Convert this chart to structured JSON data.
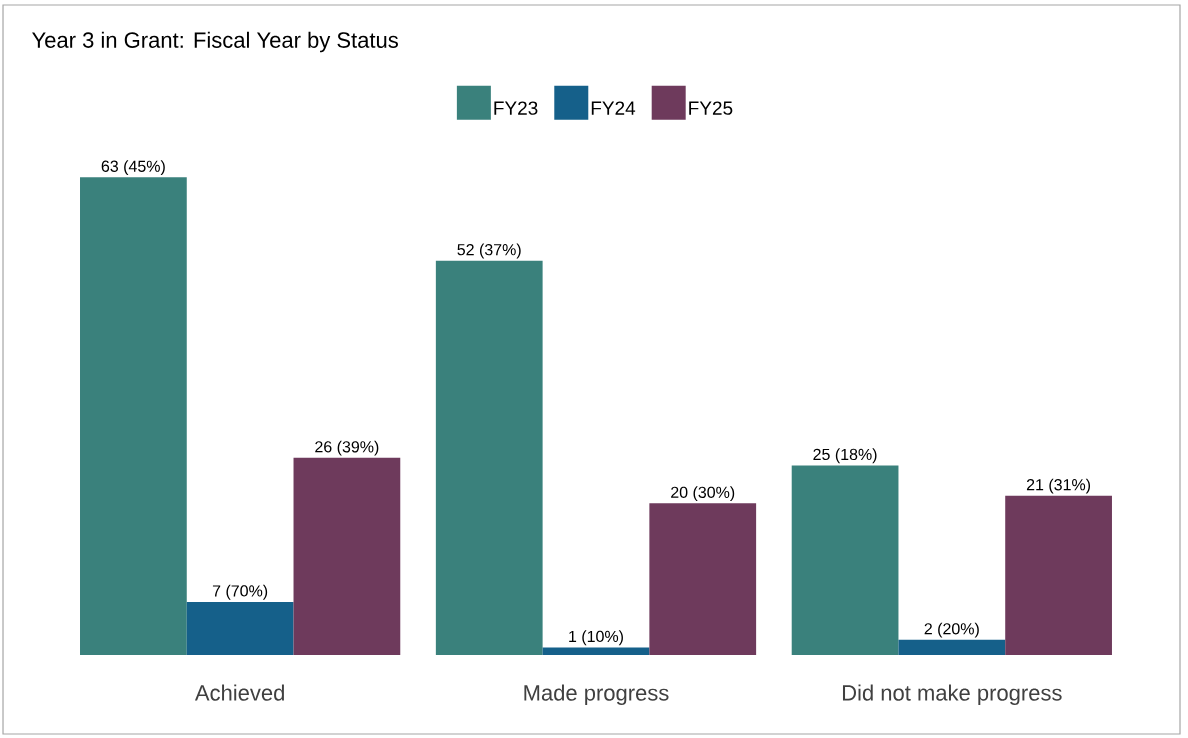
{
  "chart_data": {
    "type": "bar",
    "title": "Year 3 in Grant: Fiscal Year by Status",
    "categories": [
      "Achieved",
      "Made progress",
      "Did not make progress"
    ],
    "tick_labels": "x",
    "legend": "top",
    "series": [
      {
        "name": "FY23",
        "color": "#3a817c",
        "values": [
          63,
          52,
          25
        ],
        "value_labels": [
          "63 (45%)",
          "52 (37%)",
          "25 (18%)"
        ]
      },
      {
        "name": "FY24",
        "color": "#15608a",
        "values": [
          7,
          1,
          2
        ],
        "value_labels": [
          "7 (70%)",
          "1 (10%)",
          "2 (20%)"
        ]
      },
      {
        "name": "FY25",
        "color": "#6e3a5c",
        "values": [
          26,
          20,
          21
        ],
        "value_labels": [
          "26 (39%)",
          "20 (30%)",
          "21 (31%)"
        ]
      }
    ]
  }
}
